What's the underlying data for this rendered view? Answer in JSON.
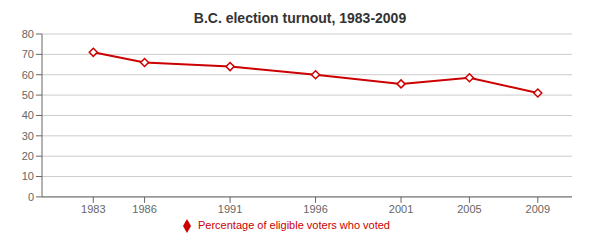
{
  "chart_data": {
    "type": "line",
    "title": "B.C. election turnout, 1983-2009",
    "x": [
      1983,
      1986,
      1991,
      1996,
      2001,
      2005,
      2009
    ],
    "series": [
      {
        "name": "Percentage of eligible voters who voted",
        "color": "#cc0000",
        "marker": "diamond",
        "values": [
          71,
          66,
          64,
          60,
          55.5,
          58.5,
          51
        ]
      }
    ],
    "xlim": [
      1980,
      2011
    ],
    "xticks": [
      1983,
      1986,
      1991,
      1996,
      2001,
      2005,
      2009
    ],
    "ylim": [
      0,
      80
    ],
    "yticks": [
      0,
      10,
      20,
      30,
      40,
      50,
      60,
      70,
      80
    ],
    "grid": true,
    "legend": "bottom"
  }
}
